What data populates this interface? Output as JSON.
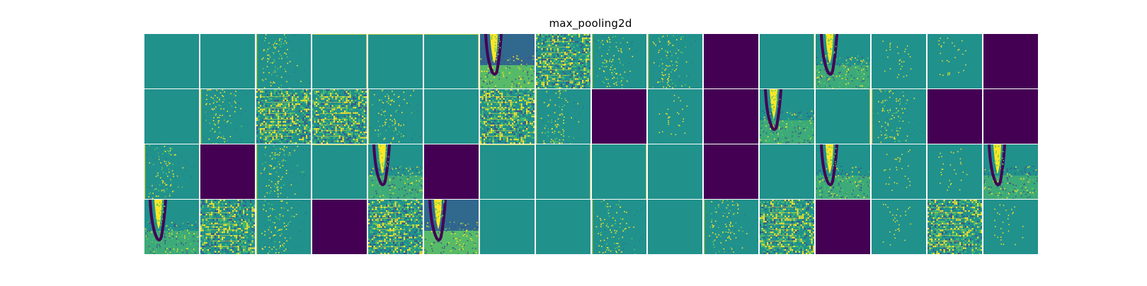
{
  "title": "max_pooling2d",
  "colors": {
    "flat": "#21918c",
    "dead": "#440154",
    "dark": "#3b528b",
    "mid": "#2c728e",
    "bright": "#fde725",
    "light": "#5ec962",
    "deep": "#31688e"
  },
  "grid": {
    "rows": 4,
    "cols": 16,
    "tiles": [
      [
        "flat",
        "flat",
        "sparse",
        "flat",
        "flat",
        "flat",
        "cone-bright",
        "noisy",
        "sparse",
        "sparse",
        "dead",
        "flat",
        "cone-dark",
        "dots",
        "dots",
        "dead"
      ],
      [
        "flat",
        "sparse",
        "noisy",
        "noisy",
        "sparse",
        "flat",
        "noisy",
        "sparse",
        "dead",
        "dots",
        "dead",
        "cone-dark",
        "flat",
        "sparse",
        "dead",
        "dead"
      ],
      [
        "sparse",
        "dead",
        "sparse",
        "flat",
        "cone-dark",
        "dead",
        "flat",
        "flat",
        "flat",
        "flat",
        "dead",
        "flat",
        "cone-dark",
        "dots",
        "dots",
        "cone-dark"
      ],
      [
        "cone-dark",
        "noisy",
        "sparse",
        "dead",
        "noisy",
        "cone-bright",
        "flat",
        "flat",
        "sparse",
        "flat",
        "sparse",
        "noisy",
        "dead",
        "dots",
        "noisy",
        "dots"
      ]
    ]
  }
}
